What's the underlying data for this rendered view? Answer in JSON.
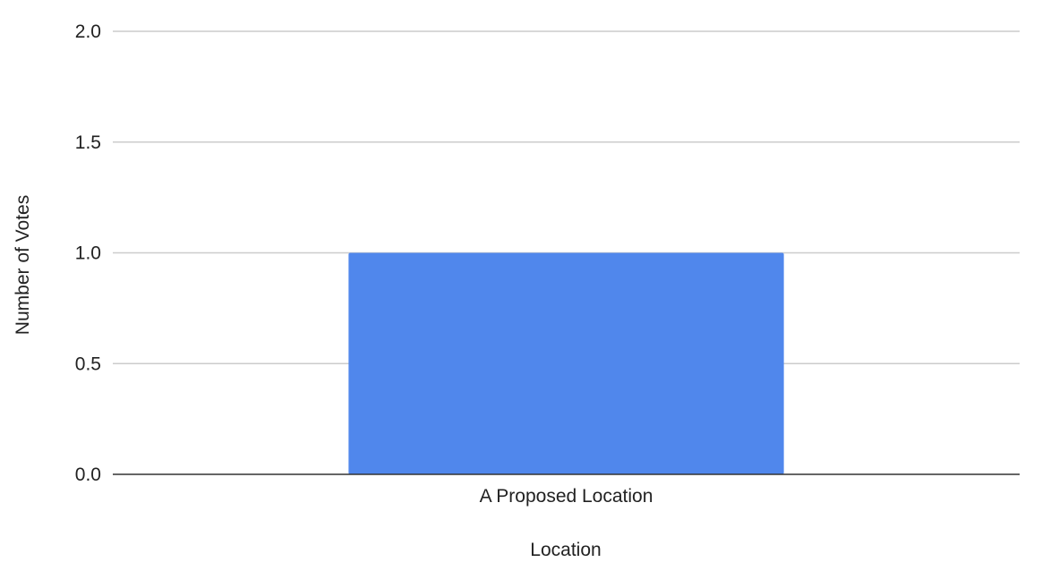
{
  "chart_data": {
    "type": "bar",
    "title": "",
    "categories": [
      "A Proposed Location"
    ],
    "series": [
      {
        "name": "Number of Votes",
        "values": [
          1
        ]
      }
    ],
    "xlabel": "Location",
    "ylabel": "Number of Votes",
    "ylim": [
      0,
      2
    ],
    "yticks": [
      0,
      0.5,
      1,
      1.5,
      2
    ],
    "ytick_labels": [
      "0.0",
      "0.5",
      "1.0",
      "1.5",
      "2.0"
    ],
    "grid": true,
    "legend": "none",
    "colors": {
      "bar": "#5087EC",
      "gridline": "#cccccc",
      "axis": "#333333",
      "text": "#222222"
    }
  }
}
